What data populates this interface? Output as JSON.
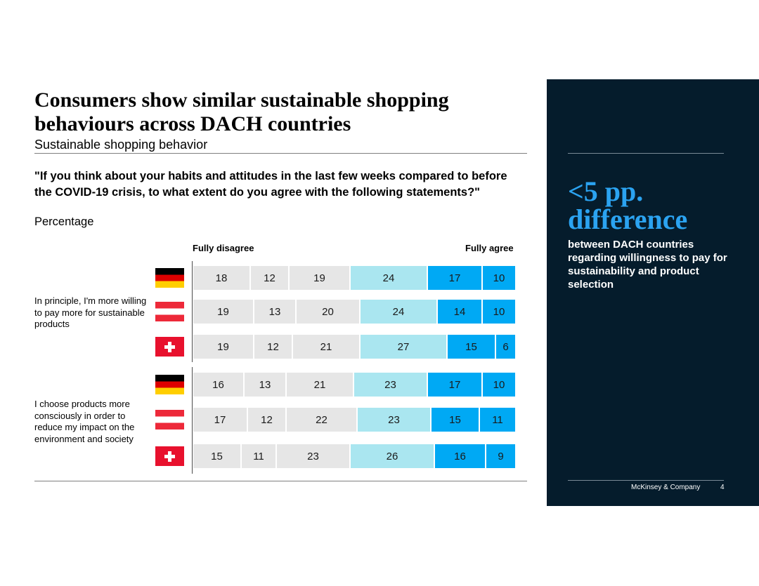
{
  "header": {
    "title": "Consumers show similar sustainable shopping behaviours across DACH countries",
    "subtitle": "Sustainable shopping behavior"
  },
  "question": {
    "text": "\"If you think about your habits and attitudes in the last few weeks compared to before the COVID-19 crisis, to what extent do you agree with the following statements?\"",
    "unit": "Percentage"
  },
  "scale": {
    "left_label": "Fully disagree",
    "right_label": "Fully agree"
  },
  "colors": {
    "grey": "#e6e6e6",
    "light_cyan": "#aae6f0",
    "blue": "#00a9f4",
    "panel_bg": "#051c2c",
    "panel_accent": "#2ba3f1"
  },
  "chart_data": {
    "type": "bar",
    "stacked": true,
    "orientation": "horizontal",
    "xlabel": "",
    "ylabel": "",
    "scale_labels": [
      "Fully disagree",
      "Fully agree"
    ],
    "groups": [
      {
        "statement": "In principle, I'm more willing to pay more for sustainable products",
        "rows": [
          {
            "country_flag": "germany-flag",
            "values": [
              18,
              12,
              19,
              24,
              17,
              10
            ]
          },
          {
            "country_flag": "austria-flag",
            "values": [
              19,
              13,
              20,
              24,
              14,
              10
            ]
          },
          {
            "country_flag": "switzerland-flag",
            "values": [
              19,
              12,
              21,
              27,
              15,
              6
            ]
          }
        ]
      },
      {
        "statement": "I choose products more consciously in order to reduce my impact on the environment and society",
        "rows": [
          {
            "country_flag": "germany-flag",
            "values": [
              16,
              13,
              21,
              23,
              17,
              10
            ]
          },
          {
            "country_flag": "austria-flag",
            "values": [
              17,
              12,
              22,
              23,
              15,
              11
            ]
          },
          {
            "country_flag": "switzerland-flag",
            "values": [
              15,
              11,
              23,
              26,
              16,
              9
            ]
          }
        ]
      }
    ],
    "segment_colors": [
      "#e6e6e6",
      "#e6e6e6",
      "#e6e6e6",
      "#aae6f0",
      "#00a9f4",
      "#00a9f4"
    ]
  },
  "panel": {
    "highlight": "<5 pp. difference",
    "text": "between DACH countries regarding willingness to pay for sustainability and product selection",
    "footer_company": "McKinsey & Company",
    "footer_page": "4"
  }
}
